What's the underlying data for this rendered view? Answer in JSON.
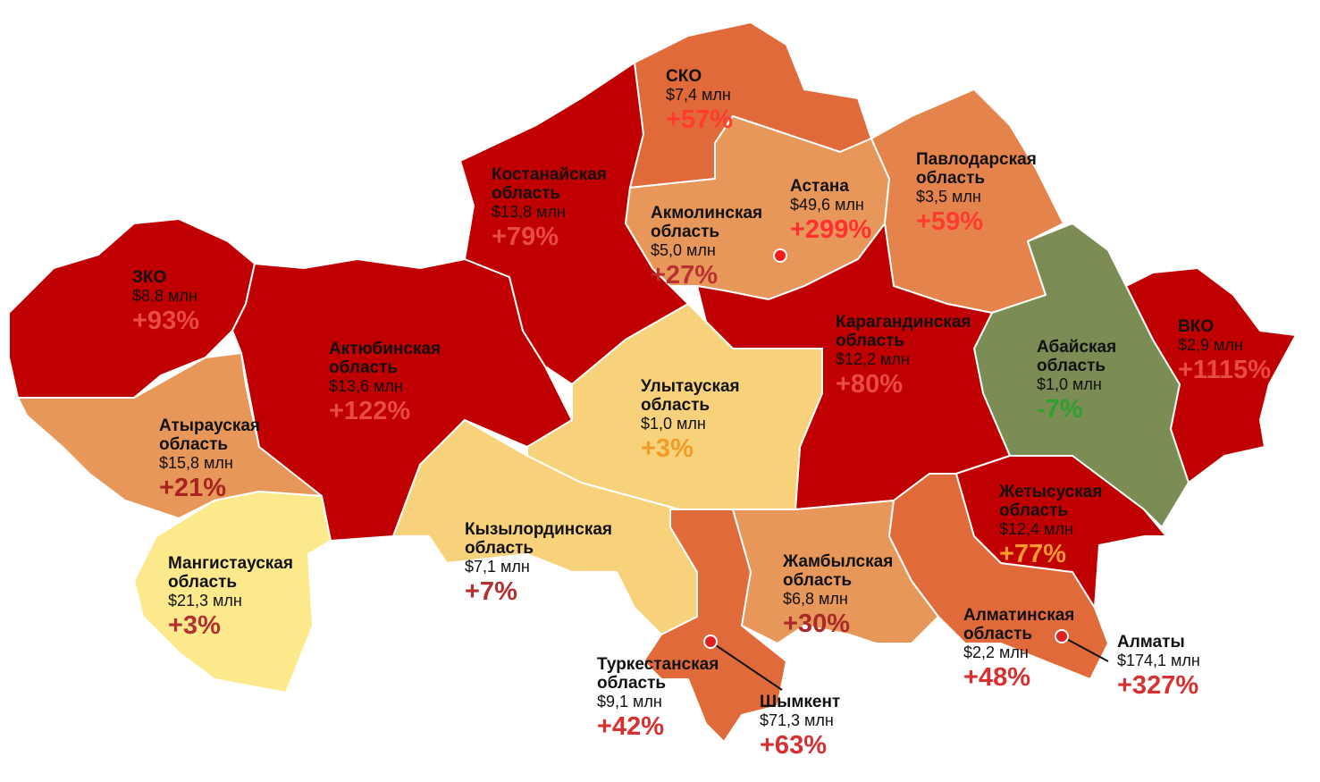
{
  "regions": [
    {
      "name": "СКО",
      "amount": "$7,4 млн",
      "change": "+57%"
    },
    {
      "name": "Костанайская область",
      "amount": "$13,8 млн",
      "change": "+79%"
    },
    {
      "name": "Акмолинская область",
      "amount": "$5,0 млн",
      "change": "+27%"
    },
    {
      "name": "Астана",
      "amount": "$49,6 млн",
      "change": "+299%"
    },
    {
      "name": "Павлодарская область",
      "amount": "$3,5 млн",
      "change": "+59%"
    },
    {
      "name": "ЗКО",
      "amount": "$8,8 млн",
      "change": "+93%"
    },
    {
      "name": "Актюбинская область",
      "amount": "$13,6 млн",
      "change": "+122%"
    },
    {
      "name": "Карагандинская область",
      "amount": "$12,2 млн",
      "change": "+80%"
    },
    {
      "name": "Абайская область",
      "amount": "$1,0 млн",
      "change": "-7%"
    },
    {
      "name": "ВКО",
      "amount": "$2,9 млн",
      "change": "+1115%"
    },
    {
      "name": "Улытауская область",
      "amount": "$1,0 млн",
      "change": "+3%"
    },
    {
      "name": "Атырауская область",
      "amount": "$15,8 млн",
      "change": "+21%"
    },
    {
      "name": "Кызылординская область",
      "amount": "$7,1 млн",
      "change": "+7%"
    },
    {
      "name": "Мангистауская область",
      "amount": "$21,3 млн",
      "change": "+3%"
    },
    {
      "name": "Жамбылская область",
      "amount": "$6,8 млн",
      "change": "+30%"
    },
    {
      "name": "Жетысуская область",
      "amount": "$12,4 млн",
      "change": "+77%"
    },
    {
      "name": "Алматинская область",
      "amount": "$2,2 млн",
      "change": "+48%"
    },
    {
      "name": "Алматы",
      "amount": "$174,1 млн",
      "change": "+327%"
    },
    {
      "name": "Туркестанская область",
      "amount": "$9,1 млн",
      "change": "+42%"
    },
    {
      "name": "Шымкент",
      "amount": "$71,3 млн",
      "change": "+63%"
    }
  ]
}
